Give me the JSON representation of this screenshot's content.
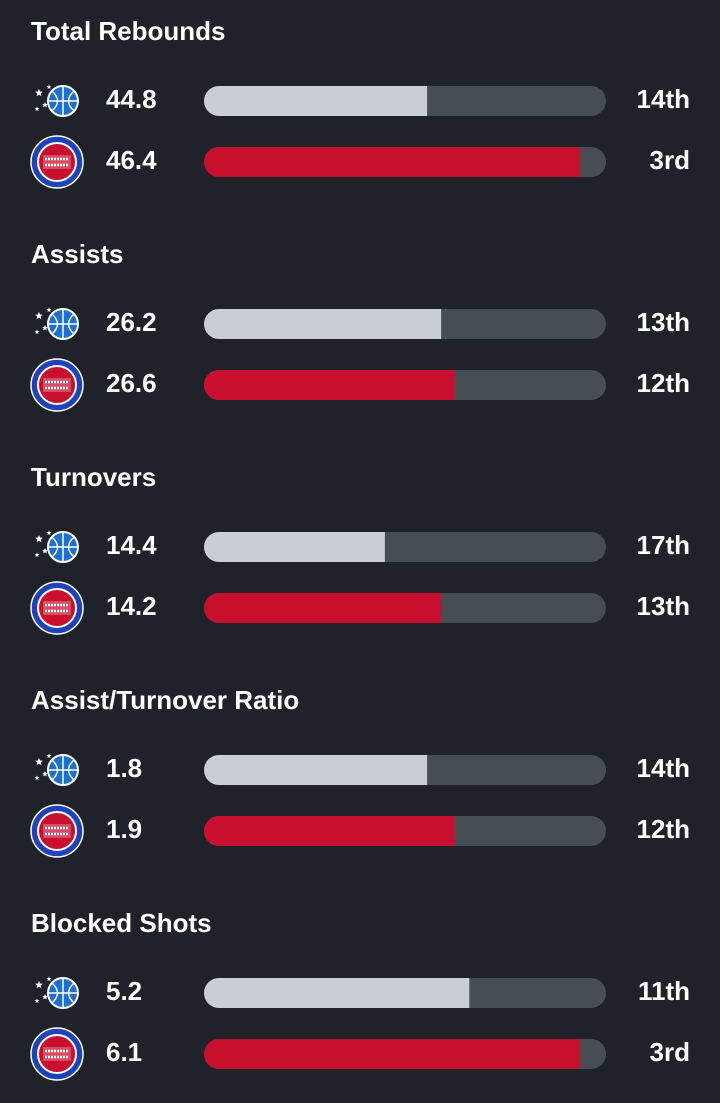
{
  "sections": [
    {
      "title": "Total Rebounds",
      "teams": [
        {
          "value": "44.8",
          "rank": "14th",
          "bar": 55.5
        },
        {
          "value": "46.4",
          "rank": "3rd",
          "bar": 93.5
        }
      ]
    },
    {
      "title": "Assists",
      "teams": [
        {
          "value": "26.2",
          "rank": "13th",
          "bar": 59
        },
        {
          "value": "26.6",
          "rank": "12th",
          "bar": 62.4
        }
      ]
    },
    {
      "title": "Turnovers",
      "teams": [
        {
          "value": "14.4",
          "rank": "17th",
          "bar": 45
        },
        {
          "value": "14.2",
          "rank": "13th",
          "bar": 59
        }
      ]
    },
    {
      "title": "Assist/Turnover Ratio",
      "teams": [
        {
          "value": "1.8",
          "rank": "14th",
          "bar": 55.5
        },
        {
          "value": "1.9",
          "rank": "12th",
          "bar": 62.4
        }
      ]
    },
    {
      "title": "Blocked Shots",
      "teams": [
        {
          "value": "5.2",
          "rank": "11th",
          "bar": 66
        },
        {
          "value": "6.1",
          "rank": "3rd",
          "bar": 93.5
        }
      ]
    }
  ]
}
